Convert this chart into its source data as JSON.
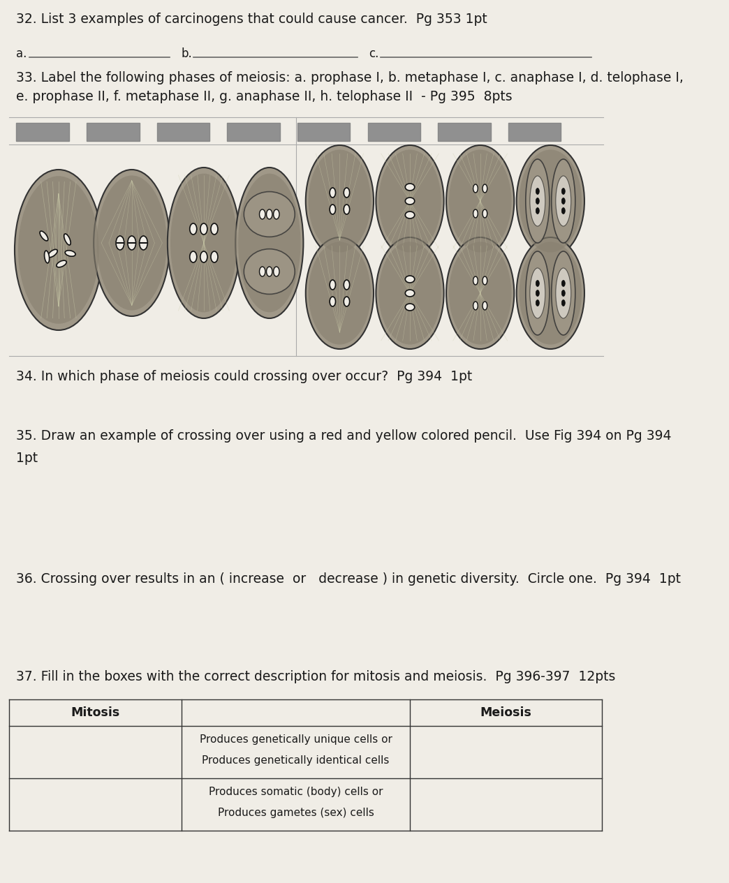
{
  "bg_color": "#f0ede6",
  "text_color": "#1a1a1a",
  "line_color": "#888888",
  "q32_text": "32. List 3 examples of carcinogens that could cause cancer.  Pg 353 1pt",
  "q33_text": "33. Label the following phases of meiosis: a. prophase I, b. metaphase I, c. anaphase I, d. telophase I,\ne. prophase II, f. metaphase II, g. anaphase II, h. telophase II  - Pg 395  8pts",
  "q34_text": "34. In which phase of meiosis could crossing over occur?  Pg 394  1pt",
  "q35_text": "35. Draw an example of crossing over using a red and yellow colored pencil.  Use Fig 394 on Pg 394\n1pt",
  "q36_text": "36. Crossing over results in an ( increase  or   decrease ) in genetic diversity.  Circle one.  Pg 394  1pt",
  "q37_text": "37. Fill in the boxes with the correct description for mitosis and meiosis.  Pg 396-397  12pts",
  "table_col1": "Mitosis",
  "table_col3": "Meiosis",
  "cell_dark": "#888070",
  "cell_mid": "#a09888",
  "cell_light": "#c8c0b0",
  "cell_interior": "#707060",
  "chrom_color": "#1a1a1a",
  "box_color": "#909090"
}
